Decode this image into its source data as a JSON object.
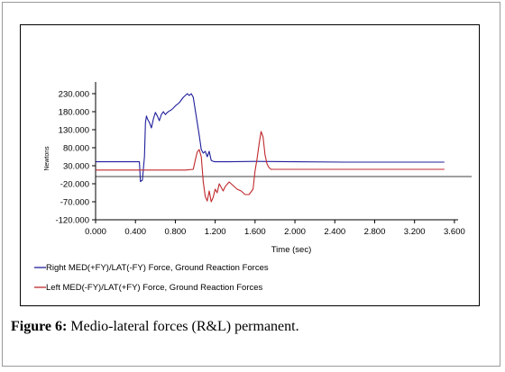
{
  "caption": {
    "label": "Figure 6:",
    "text": " Medio-lateral forces (R&L) permanent."
  },
  "chart_data": {
    "type": "line",
    "title": "",
    "xlabel": "Time (sec)",
    "ylabel": "Newtons",
    "xlim": [
      0,
      3.8
    ],
    "ylim": [
      -120,
      250
    ],
    "xticks": [
      "0.000",
      "0.400",
      "0.800",
      "1.200",
      "1.600",
      "2.000",
      "2.400",
      "2.800",
      "3.200",
      "3.600"
    ],
    "yticks": [
      "230.000",
      "180.000",
      "130.000",
      "80.000",
      "30.000",
      "-20.000",
      "-70.000",
      "-120.000"
    ],
    "zero_line": 0,
    "grid": false,
    "legend_position": "bottom",
    "colors": {
      "right": "#1f1f9c",
      "left": "#c0282c"
    },
    "series": [
      {
        "name": "Right MED(+FY)/LAT(-FY) Force, Ground Reaction Forces",
        "x": [
          0,
          0.44,
          0.45,
          0.47,
          0.49,
          0.5,
          0.51,
          0.52,
          0.54,
          0.56,
          0.58,
          0.6,
          0.62,
          0.64,
          0.66,
          0.68,
          0.7,
          0.72,
          0.74,
          0.76,
          0.78,
          0.8,
          0.84,
          0.88,
          0.92,
          0.94,
          0.96,
          0.98,
          1.0,
          1.02,
          1.04,
          1.06,
          1.08,
          1.1,
          1.12,
          1.14,
          1.16,
          1.18,
          1.2,
          1.3,
          1.6,
          2.0,
          2.5,
          3.0,
          3.5
        ],
        "y": [
          41,
          41,
          -14,
          -10,
          55,
          150,
          168,
          160,
          150,
          135,
          160,
          178,
          168,
          155,
          172,
          180,
          172,
          178,
          182,
          185,
          190,
          196,
          205,
          220,
          230,
          225,
          230,
          220,
          185,
          150,
          115,
          75,
          65,
          70,
          55,
          70,
          45,
          42,
          41,
          41,
          42,
          41,
          40,
          40,
          40
        ]
      },
      {
        "name": "Left MED(-FY)/LAT(+FY) Force, Ground Reaction Forces",
        "x": [
          0,
          0.9,
          0.98,
          1.0,
          1.02,
          1.04,
          1.06,
          1.08,
          1.1,
          1.12,
          1.14,
          1.16,
          1.18,
          1.2,
          1.22,
          1.24,
          1.26,
          1.28,
          1.3,
          1.34,
          1.38,
          1.42,
          1.46,
          1.5,
          1.54,
          1.58,
          1.6,
          1.62,
          1.64,
          1.66,
          1.68,
          1.7,
          1.72,
          1.74,
          1.76,
          1.8,
          2.2,
          2.8,
          3.5
        ],
        "y": [
          18,
          18,
          20,
          45,
          68,
          75,
          55,
          -15,
          -55,
          -68,
          -40,
          -70,
          -58,
          -35,
          -45,
          -20,
          -30,
          -40,
          -28,
          -15,
          -25,
          -35,
          -40,
          -50,
          -50,
          -35,
          15,
          50,
          90,
          125,
          110,
          60,
          35,
          25,
          20,
          20,
          20,
          20,
          20
        ]
      }
    ]
  }
}
